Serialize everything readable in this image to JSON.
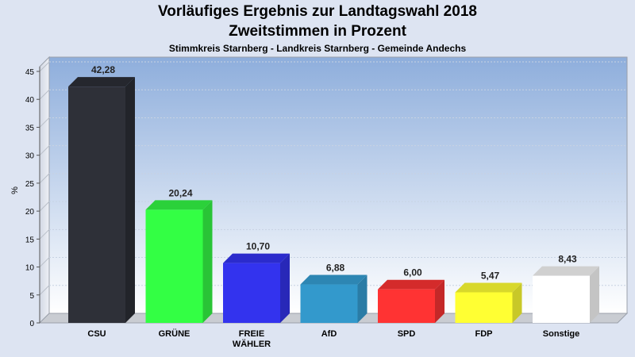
{
  "chart_data": {
    "type": "bar",
    "title": "Vorläufiges Ergebnis zur Landtagswahl 2018",
    "subtitle": "Zweitstimmen in Prozent",
    "subsubtitle": "Stimmkreis Starnberg - Landkreis Starnberg - Gemeinde Andechs",
    "ylabel": "%",
    "ylim": [
      0,
      45
    ],
    "yticks": [
      0,
      5,
      10,
      15,
      20,
      25,
      30,
      35,
      40,
      45
    ],
    "grid": true,
    "categories": [
      "CSU",
      "GRÜNE",
      "FREIE WÄHLER",
      "AfD",
      "SPD",
      "FDP",
      "Sonstige"
    ],
    "category_lines": [
      [
        "CSU"
      ],
      [
        "GRÜNE"
      ],
      [
        "FREIE",
        "WÄHLER"
      ],
      [
        "AfD"
      ],
      [
        "SPD"
      ],
      [
        "FDP"
      ],
      [
        "Sonstige"
      ]
    ],
    "values": [
      42.28,
      20.24,
      10.7,
      6.88,
      6.0,
      5.47,
      8.43
    ],
    "value_labels": [
      "42,28",
      "20,24",
      "10,70",
      "6,88",
      "6,00",
      "5,47",
      "8,43"
    ],
    "colors": [
      "#2e3038",
      "#33ff44",
      "#3333ee",
      "#3399cc",
      "#ff3333",
      "#ffff33",
      "#ffffff"
    ],
    "side_colors": [
      "#22242a",
      "#29c436",
      "#2828b8",
      "#2a7ca6",
      "#c42828",
      "#c8c828",
      "#c4c4c4"
    ],
    "top_colors": [
      "#25272e",
      "#2bd13a",
      "#2b2bcc",
      "#2d86b3",
      "#d42b2b",
      "#d8d82b",
      "#d0d0d0"
    ]
  }
}
